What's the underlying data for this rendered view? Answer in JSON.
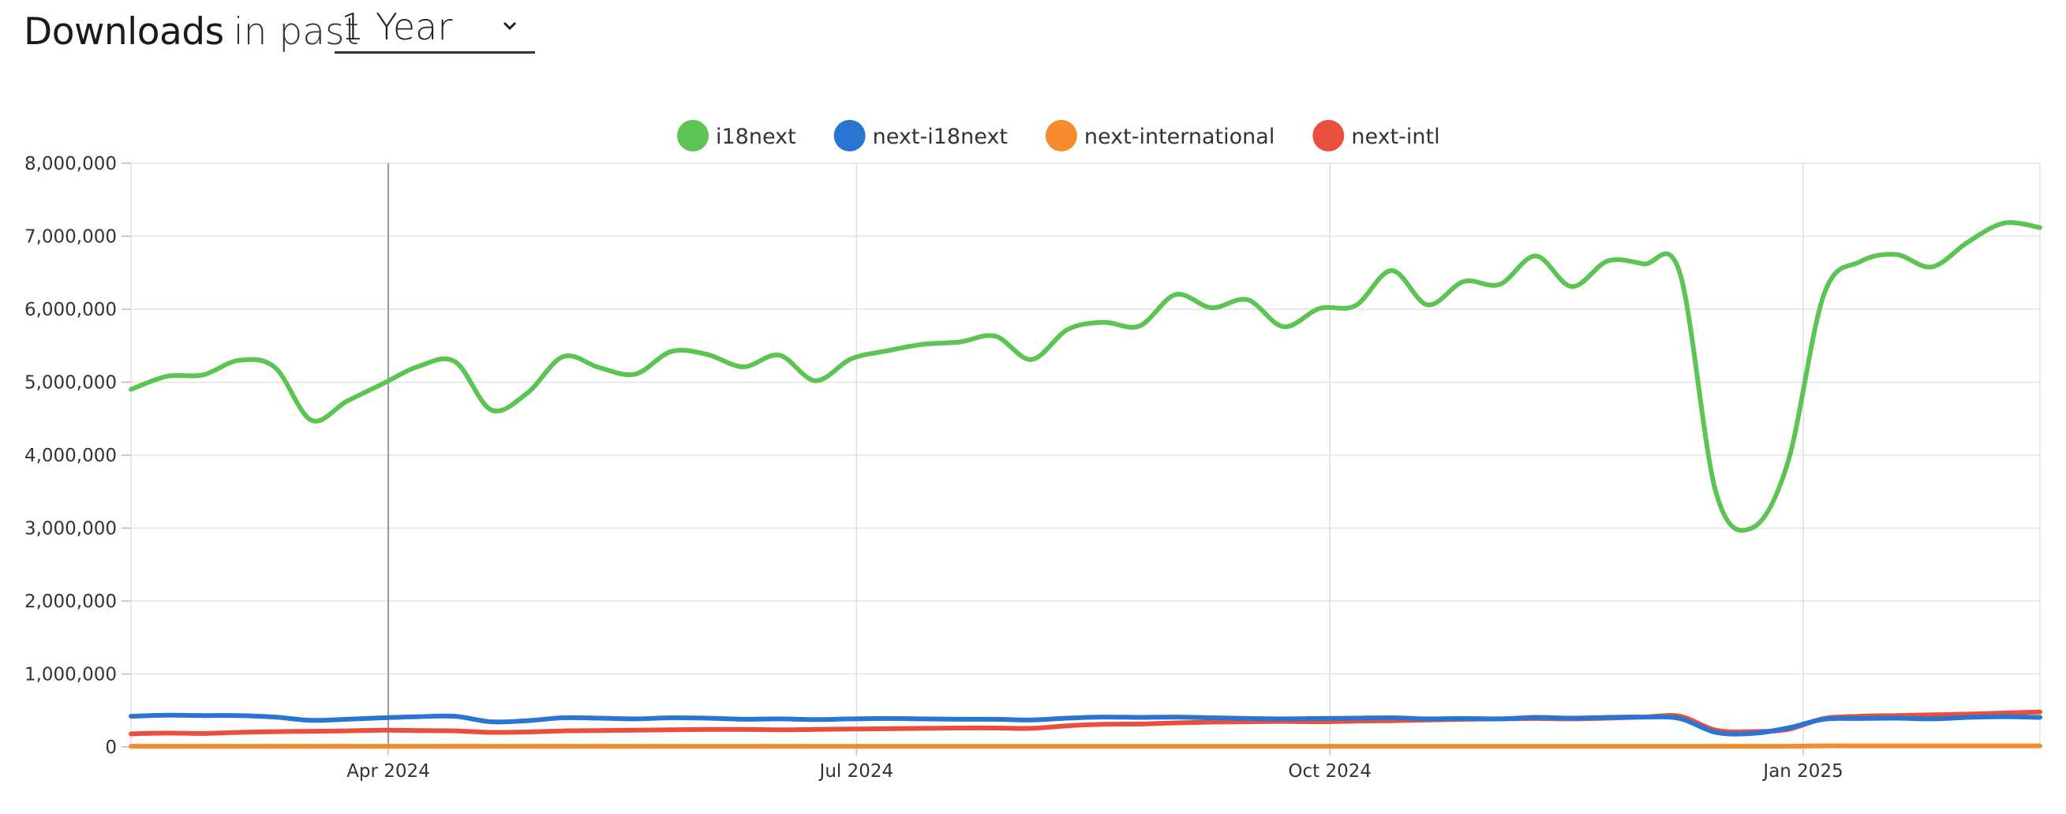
{
  "header": {
    "title_strong": "Downloads",
    "title_rest": "in past",
    "period_selected": "1 Year"
  },
  "colors": {
    "i18next": "#5cc452",
    "next-i18next": "#2a74d4",
    "next-international": "#f58b2e",
    "next-intl": "#ea4f3d",
    "grid": "#e3e3e3",
    "month_line": "#dddddd",
    "hover_line": "#999999"
  },
  "chart_data": {
    "type": "line",
    "y_tick_labels": [
      "0",
      "1,000,000",
      "2,000,000",
      "3,000,000",
      "4,000,000",
      "5,000,000",
      "6,000,000",
      "7,000,000",
      "8,000,000"
    ],
    "y_ticks": [
      0,
      1000000,
      2000000,
      3000000,
      4000000,
      5000000,
      6000000,
      7000000,
      8000000
    ],
    "ylim": [
      0,
      8000000
    ],
    "xlim": [
      "2024-02-11",
      "2025-02-16"
    ],
    "x_ticks": [
      {
        "date": "2024-04-01",
        "label": "Apr 2024"
      },
      {
        "date": "2024-07-01",
        "label": "Jul 2024"
      },
      {
        "date": "2024-10-01",
        "label": "Oct 2024"
      },
      {
        "date": "2025-01-01",
        "label": "Jan 2025"
      }
    ],
    "hover_date": "2024-04-01",
    "grid": true,
    "legend_position": "top",
    "x": [
      "2024-02-11",
      "2024-02-18",
      "2024-02-25",
      "2024-03-03",
      "2024-03-10",
      "2024-03-17",
      "2024-03-24",
      "2024-03-31",
      "2024-04-07",
      "2024-04-14",
      "2024-04-21",
      "2024-04-28",
      "2024-05-05",
      "2024-05-12",
      "2024-05-19",
      "2024-05-26",
      "2024-06-02",
      "2024-06-09",
      "2024-06-16",
      "2024-06-23",
      "2024-06-30",
      "2024-07-07",
      "2024-07-14",
      "2024-07-21",
      "2024-07-28",
      "2024-08-04",
      "2024-08-11",
      "2024-08-18",
      "2024-08-25",
      "2024-09-01",
      "2024-09-08",
      "2024-09-15",
      "2024-09-22",
      "2024-09-29",
      "2024-10-06",
      "2024-10-13",
      "2024-10-20",
      "2024-10-27",
      "2024-11-03",
      "2024-11-10",
      "2024-11-17",
      "2024-11-24",
      "2024-12-01",
      "2024-12-08",
      "2024-12-15",
      "2024-12-22",
      "2024-12-29",
      "2025-01-05",
      "2025-01-12",
      "2025-01-19",
      "2025-01-26",
      "2025-02-02",
      "2025-02-09",
      "2025-02-16"
    ],
    "series": [
      {
        "name": "i18next",
        "color": "#5cc452",
        "values": [
          4900000,
          5080000,
          5100000,
          5300000,
          5200000,
          4480000,
          4740000,
          4980000,
          5220000,
          5280000,
          4620000,
          4850000,
          5350000,
          5200000,
          5110000,
          5420000,
          5380000,
          5210000,
          5370000,
          5020000,
          5320000,
          5430000,
          5520000,
          5550000,
          5630000,
          5310000,
          5720000,
          5820000,
          5770000,
          6200000,
          6020000,
          6130000,
          5760000,
          6010000,
          6050000,
          6530000,
          6060000,
          6380000,
          6340000,
          6730000,
          6310000,
          6660000,
          6620000,
          6500000,
          3500000,
          3000000,
          3900000,
          6200000,
          6650000,
          6750000,
          6580000,
          6920000,
          7180000,
          7120000
        ]
      },
      {
        "name": "next-i18next",
        "color": "#2a74d4",
        "values": [
          420000,
          435000,
          430000,
          430000,
          410000,
          365000,
          380000,
          400000,
          415000,
          420000,
          345000,
          360000,
          400000,
          395000,
          385000,
          400000,
          395000,
          380000,
          385000,
          375000,
          385000,
          390000,
          385000,
          380000,
          380000,
          370000,
          395000,
          410000,
          405000,
          410000,
          400000,
          390000,
          385000,
          390000,
          395000,
          400000,
          385000,
          390000,
          385000,
          405000,
          395000,
          405000,
          410000,
          390000,
          200000,
          185000,
          260000,
          380000,
          390000,
          395000,
          385000,
          405000,
          415000,
          405000
        ]
      },
      {
        "name": "next-international",
        "color": "#f58b2e",
        "values": [
          10000,
          10000,
          10000,
          10000,
          10000,
          10000,
          10000,
          10000,
          10000,
          10000,
          10000,
          10000,
          10000,
          10000,
          10000,
          10000,
          10000,
          10000,
          10000,
          10000,
          10000,
          10000,
          10000,
          10000,
          10000,
          10000,
          10000,
          10000,
          10000,
          10000,
          10000,
          10000,
          10000,
          10000,
          10000,
          10000,
          10000,
          10000,
          10000,
          10000,
          10000,
          10000,
          10000,
          10000,
          10000,
          10000,
          10000,
          15000,
          15000,
          15000,
          15000,
          15000,
          15000,
          15000
        ]
      },
      {
        "name": "next-intl",
        "color": "#ea4f3d",
        "values": [
          180000,
          190000,
          185000,
          200000,
          210000,
          215000,
          220000,
          230000,
          225000,
          220000,
          200000,
          205000,
          220000,
          225000,
          230000,
          235000,
          240000,
          240000,
          235000,
          240000,
          245000,
          250000,
          255000,
          260000,
          260000,
          255000,
          290000,
          310000,
          315000,
          330000,
          340000,
          345000,
          350000,
          345000,
          355000,
          360000,
          370000,
          380000,
          385000,
          390000,
          385000,
          395000,
          410000,
          420000,
          230000,
          210000,
          240000,
          390000,
          420000,
          430000,
          440000,
          450000,
          465000,
          480000
        ]
      }
    ]
  }
}
